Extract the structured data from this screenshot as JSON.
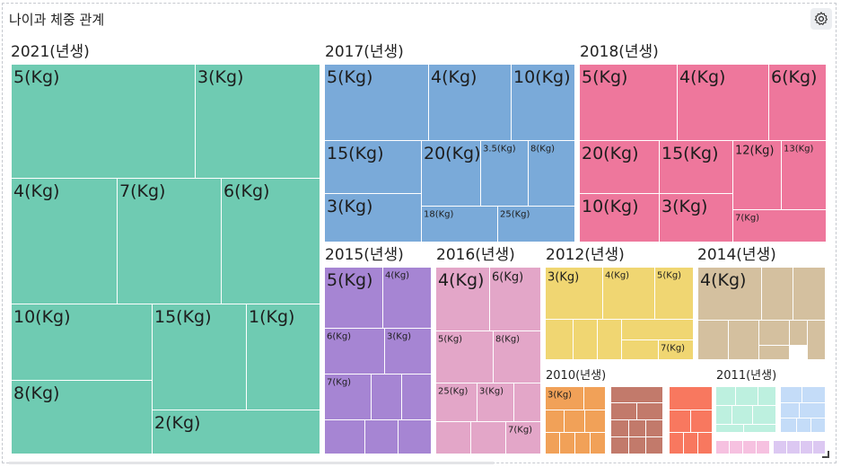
{
  "header": {
    "title": "나이과 체중 관계",
    "settings_icon": "gear-icon"
  },
  "chart_data": {
    "type": "treemap",
    "title": "나이과 체중 관계",
    "groups": [
      {
        "id": "g2021",
        "label": "2021(년생)",
        "color": "#6fcbb2",
        "items": [
          "5(Kg)",
          "3(Kg)",
          "4(Kg)",
          "7(Kg)",
          "6(Kg)",
          "10(Kg)",
          "15(Kg)",
          "1(Kg)",
          "8(Kg)",
          "2(Kg)"
        ]
      },
      {
        "id": "g2017",
        "label": "2017(년생)",
        "color": "#7aaad9",
        "items": [
          "5(Kg)",
          "4(Kg)",
          "10(Kg)",
          "15(Kg)",
          "20(Kg)",
          "3.5(Kg)",
          "8(Kg)",
          "3(Kg)",
          "18(Kg)",
          "25(Kg)"
        ]
      },
      {
        "id": "g2018",
        "label": "2018(년생)",
        "color": "#ee779c",
        "items": [
          "5(Kg)",
          "4(Kg)",
          "6(Kg)",
          "20(Kg)",
          "15(Kg)",
          "12(Kg)",
          "13(Kg)",
          "10(Kg)",
          "3(Kg)",
          "7(Kg)"
        ]
      },
      {
        "id": "g2015",
        "label": "2015(년생)",
        "color": "#a685d3",
        "items": [
          "5(Kg)",
          "4(Kg)",
          "6(Kg)",
          "3(Kg)",
          "7(Kg)"
        ]
      },
      {
        "id": "g2016",
        "label": "2016(년생)",
        "color": "#e3a6c8",
        "items": [
          "4(Kg)",
          "6(Kg)",
          "5(Kg)",
          "8(Kg)",
          "25(Kg)",
          "3(Kg)",
          "7(Kg)"
        ]
      },
      {
        "id": "g2012",
        "label": "2012(년생)",
        "color": "#f0d672",
        "items": [
          "3(Kg)",
          "4(Kg)",
          "5(Kg)",
          "7(Kg)"
        ]
      },
      {
        "id": "g2014",
        "label": "2014(년생)",
        "color": "#d4c09f",
        "items": [
          "4(Kg)"
        ]
      },
      {
        "id": "g2010",
        "label": "2010(년생)",
        "color": "#f1a158",
        "items": [
          "3(Kg)"
        ]
      },
      {
        "id": "g2013",
        "label": "",
        "color": "#c27a6b",
        "items": []
      },
      {
        "id": "g2019",
        "label": "",
        "color": "#f8785f",
        "items": []
      },
      {
        "id": "g2011",
        "label": "2011(년생)",
        "color": "#bdf0df",
        "items": []
      },
      {
        "id": "g2020",
        "label": "",
        "color": "#c4dcf8",
        "items": []
      },
      {
        "id": "g2009",
        "label": "",
        "color": "#f6c1e0",
        "items": []
      },
      {
        "id": "g2008",
        "label": "",
        "color": "#dcc8f2",
        "items": []
      }
    ]
  }
}
